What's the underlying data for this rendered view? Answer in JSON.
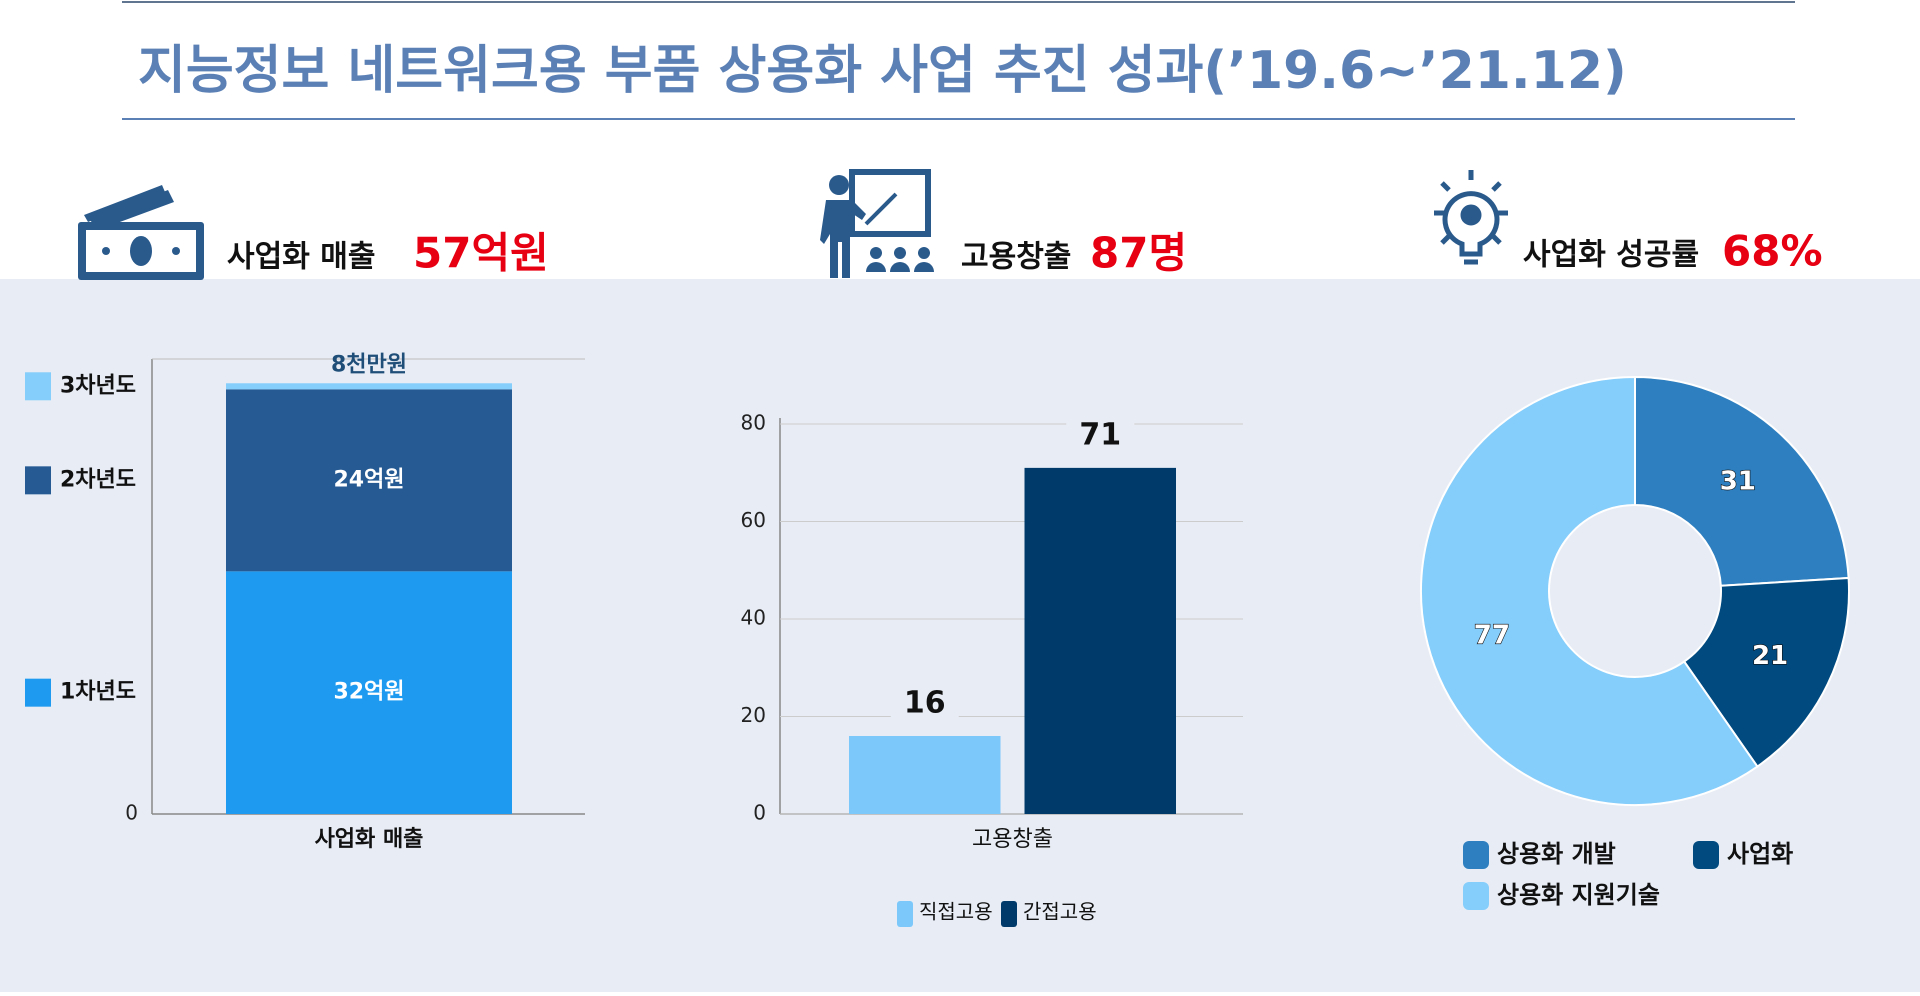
{
  "title": "지능정보 네트워크용 부품 상용화 사업 추진 성과(’19.6~’21.12)",
  "kpis": [
    {
      "label": "사업화 매출",
      "value": "57억원"
    },
    {
      "label": "고용창출",
      "value": "87명"
    },
    {
      "label": "사업화 성공률",
      "value": "68%"
    }
  ],
  "chart_data": [
    {
      "type": "bar",
      "stacked": true,
      "categories": [
        "사업화 매출"
      ],
      "series": [
        {
          "name": "1차년도",
          "color": "#1e9bf0",
          "values": [
            32
          ],
          "value_labels": [
            "32억원"
          ]
        },
        {
          "name": "2차년도",
          "color": "#255a93",
          "values": [
            24
          ],
          "value_labels": [
            "24억원"
          ]
        },
        {
          "name": "3차년도",
          "color": "#85cdfb",
          "values": [
            0.8
          ],
          "value_labels": [
            "8천만원"
          ]
        }
      ],
      "ylim": [
        0,
        60
      ],
      "yticks": [
        0
      ],
      "legend": "left"
    },
    {
      "type": "bar",
      "categories": [
        "고용창출"
      ],
      "series": [
        {
          "name": "직접고용",
          "color": "#7cc8fb",
          "values": [
            16
          ]
        },
        {
          "name": "간접고용",
          "color": "#003a6b",
          "values": [
            71
          ]
        }
      ],
      "ylim": [
        0,
        80
      ],
      "yticks": [
        0,
        20,
        40,
        60,
        80
      ],
      "grid": true,
      "legend": "bottom"
    },
    {
      "type": "donut",
      "categories": [
        "상용화 개발",
        "사업화",
        "상용화 지원기술"
      ],
      "values": [
        31,
        21,
        77
      ],
      "colors": [
        "#2e7fbf",
        "#004a80",
        "#85cdfb"
      ],
      "legend": "bottom"
    }
  ]
}
